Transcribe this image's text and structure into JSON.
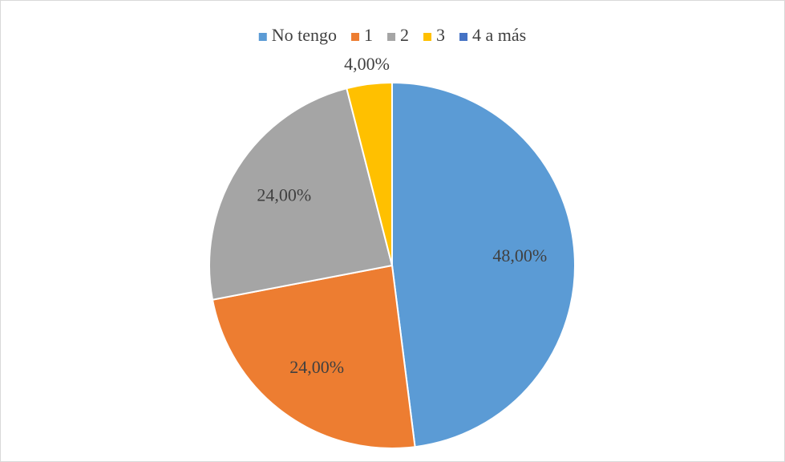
{
  "chart_data": {
    "type": "pie",
    "categories": [
      "No tengo",
      "1",
      "2",
      "3",
      "4 a más"
    ],
    "values": [
      48,
      24,
      24,
      4,
      0
    ],
    "value_labels": [
      "48,00%",
      "24,00%",
      "24,00%",
      "4,00%",
      null
    ],
    "colors": [
      "#5b9bd5",
      "#ed7d31",
      "#a5a5a5",
      "#ffc000",
      "#4472c4"
    ],
    "legend": "top"
  }
}
